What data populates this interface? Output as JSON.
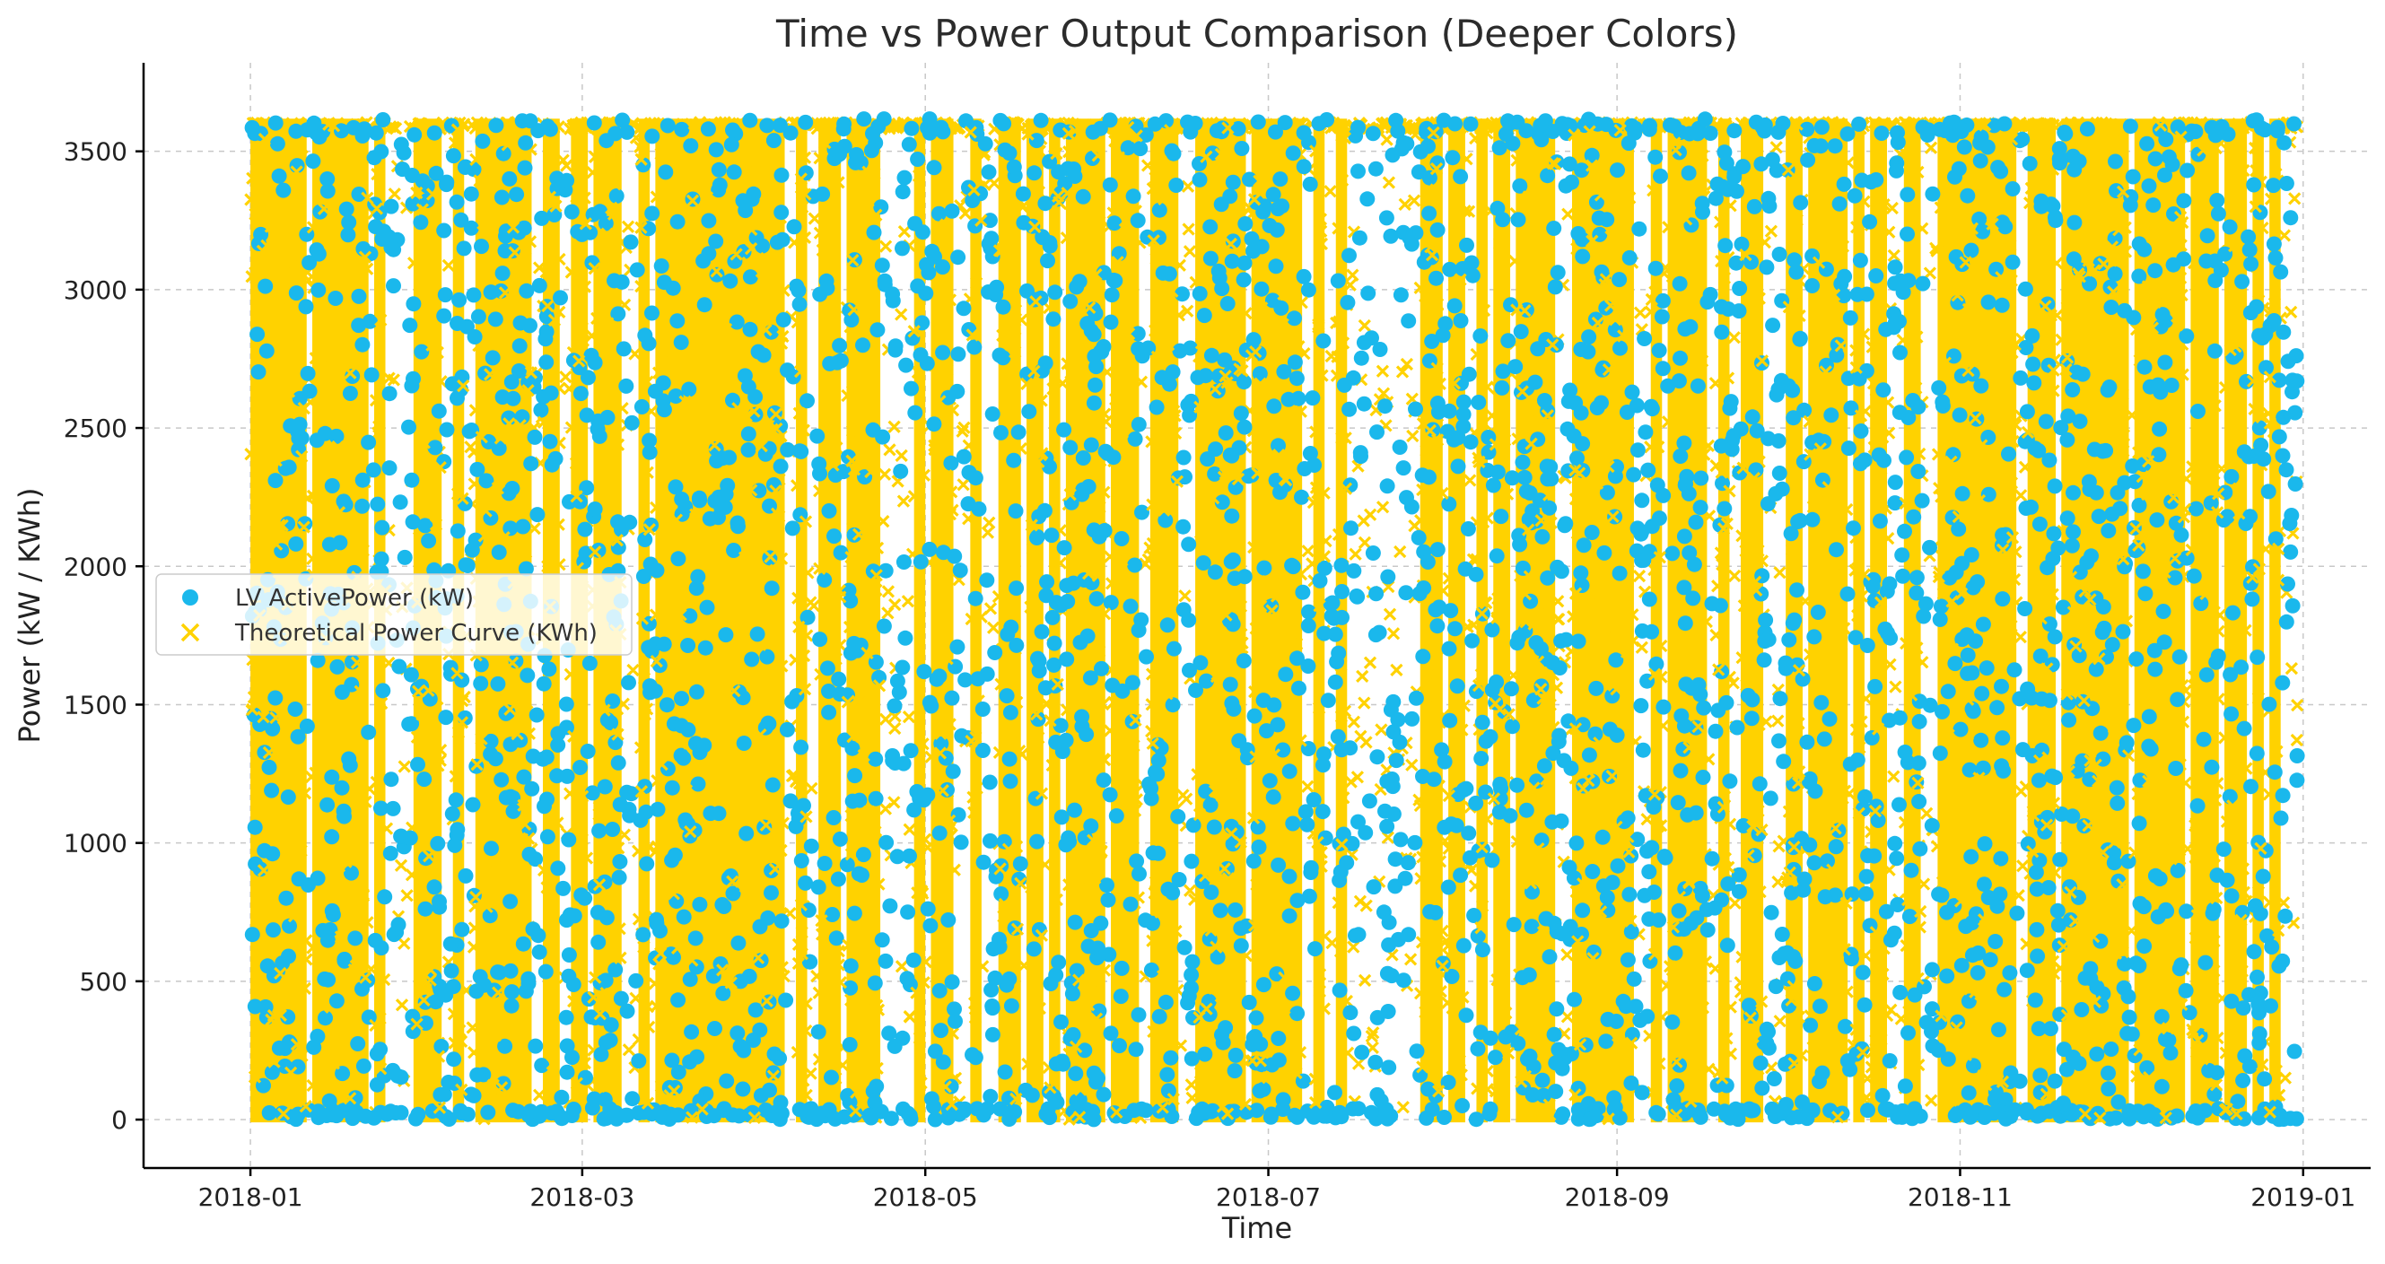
{
  "chart_data": {
    "type": "scatter",
    "title": "Time vs Power Output Comparison (Deeper Colors)",
    "xlabel": "Time",
    "ylabel": "Power (kW / KWh)",
    "xlim": [
      "2017-12-13",
      "2019-01-13"
    ],
    "ylim": [
      -175,
      3820
    ],
    "x_ticks": [
      "2018-01",
      "2018-03",
      "2018-05",
      "2018-07",
      "2018-09",
      "2018-11",
      "2019-01"
    ],
    "y_ticks": [
      0,
      500,
      1000,
      1500,
      2000,
      2500,
      3000,
      3500
    ],
    "grid": true,
    "legend_position": "center-left",
    "colors": {
      "active": "#1ab8ec",
      "theoretical": "#ffd200"
    },
    "series": [
      {
        "name": "LV ActivePower (kW)",
        "marker": "circle",
        "color": "#1ab8ec",
        "value_range": [
          0,
          3618
        ],
        "x_range": [
          "2018-01-01",
          "2018-12-31"
        ]
      },
      {
        "name": "Theoretical Power Curve (KWh)",
        "marker": "x",
        "color": "#ffd200",
        "value_range": [
          0,
          3600
        ],
        "x_range": [
          "2018-01-01",
          "2018-12-31"
        ]
      }
    ],
    "dense_bands": [
      [
        "2018-01-01",
        "2018-01-11"
      ],
      [
        "2018-01-12",
        "2018-01-22"
      ],
      [
        "2018-01-23",
        "2018-01-25"
      ],
      [
        "2018-01-30",
        "2018-02-04"
      ],
      [
        "2018-02-06",
        "2018-02-08"
      ],
      [
        "2018-02-10",
        "2018-02-20"
      ],
      [
        "2018-02-22",
        "2018-02-25"
      ],
      [
        "2018-02-27",
        "2018-03-02"
      ],
      [
        "2018-03-03",
        "2018-03-08"
      ],
      [
        "2018-03-11",
        "2018-03-13"
      ],
      [
        "2018-03-14",
        "2018-04-06"
      ],
      [
        "2018-04-08",
        "2018-04-10"
      ],
      [
        "2018-04-12",
        "2018-04-16"
      ],
      [
        "2018-04-17",
        "2018-04-23"
      ],
      [
        "2018-04-29",
        "2018-05-01"
      ],
      [
        "2018-05-02",
        "2018-05-06"
      ],
      [
        "2018-05-09",
        "2018-05-11"
      ],
      [
        "2018-05-14",
        "2018-05-18"
      ],
      [
        "2018-05-19",
        "2018-05-22"
      ],
      [
        "2018-05-23",
        "2018-05-25"
      ],
      [
        "2018-05-26",
        "2018-06-02"
      ],
      [
        "2018-06-03",
        "2018-06-08"
      ],
      [
        "2018-06-10",
        "2018-06-15"
      ],
      [
        "2018-06-18",
        "2018-06-27"
      ],
      [
        "2018-06-28",
        "2018-07-07"
      ],
      [
        "2018-07-09",
        "2018-07-11"
      ],
      [
        "2018-07-13",
        "2018-07-15"
      ],
      [
        "2018-07-28",
        "2018-08-01"
      ],
      [
        "2018-08-02",
        "2018-08-05"
      ],
      [
        "2018-08-07",
        "2018-08-09"
      ],
      [
        "2018-08-10",
        "2018-08-13"
      ],
      [
        "2018-08-14",
        "2018-08-21"
      ],
      [
        "2018-08-24",
        "2018-09-04"
      ],
      [
        "2018-09-07",
        "2018-09-09"
      ],
      [
        "2018-09-10",
        "2018-09-17"
      ],
      [
        "2018-09-19",
        "2018-09-21"
      ],
      [
        "2018-09-23",
        "2018-09-27"
      ],
      [
        "2018-10-01",
        "2018-10-04"
      ],
      [
        "2018-10-05",
        "2018-10-12"
      ],
      [
        "2018-10-13",
        "2018-10-15"
      ],
      [
        "2018-10-16",
        "2018-10-19"
      ],
      [
        "2018-10-22",
        "2018-10-25"
      ],
      [
        "2018-10-28",
        "2018-11-11"
      ],
      [
        "2018-11-13",
        "2018-11-18"
      ],
      [
        "2018-11-19",
        "2018-12-01"
      ],
      [
        "2018-12-02",
        "2018-12-11"
      ],
      [
        "2018-12-12",
        "2018-12-17"
      ],
      [
        "2018-12-18",
        "2018-12-22"
      ],
      [
        "2018-12-23",
        "2018-12-25"
      ],
      [
        "2018-12-26",
        "2018-12-28"
      ]
    ]
  }
}
